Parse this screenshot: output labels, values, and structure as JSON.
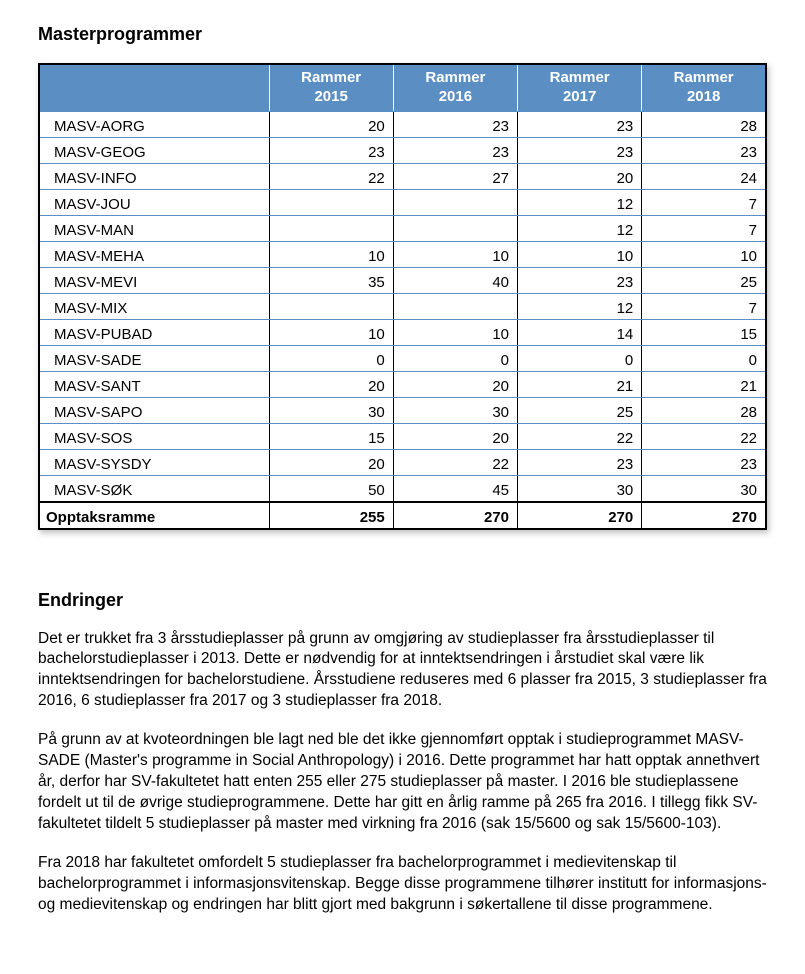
{
  "headings": {
    "title": "Masterprogrammer",
    "changes": "Endringer"
  },
  "table": {
    "type": "table",
    "header_bg": "#5b8fc4",
    "header_fg": "#ffffff",
    "row_divider_color": "#5b8fc4",
    "outer_border_color": "#000000",
    "columns": [
      "",
      "Rammer 2015",
      "Rammer 2016",
      "Rammer 2017",
      "Rammer 2018"
    ],
    "rows": [
      {
        "label": "MASV-AORG",
        "v": [
          "20",
          "23",
          "23",
          "28"
        ]
      },
      {
        "label": "MASV-GEOG",
        "v": [
          "23",
          "23",
          "23",
          "23"
        ]
      },
      {
        "label": "MASV-INFO",
        "v": [
          "22",
          "27",
          "20",
          "24"
        ]
      },
      {
        "label": "MASV-JOU",
        "v": [
          "",
          "",
          "12",
          "7"
        ]
      },
      {
        "label": "MASV-MAN",
        "v": [
          "",
          "",
          "12",
          "7"
        ]
      },
      {
        "label": "MASV-MEHA",
        "v": [
          "10",
          "10",
          "10",
          "10"
        ]
      },
      {
        "label": "MASV-MEVI",
        "v": [
          "35",
          "40",
          "23",
          "25"
        ]
      },
      {
        "label": "MASV-MIX",
        "v": [
          "",
          "",
          "12",
          "7"
        ]
      },
      {
        "label": "MASV-PUBAD",
        "v": [
          "10",
          "10",
          "14",
          "15"
        ]
      },
      {
        "label": "MASV-SADE",
        "v": [
          "0",
          "0",
          "0",
          "0"
        ]
      },
      {
        "label": "MASV-SANT",
        "v": [
          "20",
          "20",
          "21",
          "21"
        ]
      },
      {
        "label": "MASV-SAPO",
        "v": [
          "30",
          "30",
          "25",
          "28"
        ]
      },
      {
        "label": "MASV-SOS",
        "v": [
          "15",
          "20",
          "22",
          "22"
        ]
      },
      {
        "label": "MASV-SYSDY",
        "v": [
          "20",
          "22",
          "23",
          "23"
        ]
      },
      {
        "label": "MASV-SØK",
        "v": [
          "50",
          "45",
          "30",
          "30"
        ]
      }
    ],
    "total": {
      "label": "Opptaksramme",
      "v": [
        "255",
        "270",
        "270",
        "270"
      ]
    }
  },
  "paragraphs": {
    "p1": "Det er trukket fra 3 årsstudieplasser på grunn av omgjøring av studieplasser fra årsstudieplasser til bachelorstudieplasser i 2013. Dette er nødvendig for at inntektsendringen i årstudiet skal være lik inntektsendringen for bachelorstudiene. Årsstudiene reduseres med 6 plasser fra 2015, 3 studieplasser fra 2016, 6 studieplasser fra 2017 og 3 studieplasser fra 2018.",
    "p2": "På grunn av at kvoteordningen ble lagt ned ble det ikke gjennomført opptak i studieprogrammet MASV-SADE (Master's programme in Social Anthropology) i 2016. Dette programmet har hatt opptak annethvert år, derfor har SV-fakultetet hatt enten 255 eller 275 studieplasser på master. I 2016 ble studieplassene fordelt ut til de øvrige studieprogrammene. Dette har gitt en årlig ramme på 265 fra 2016. I tillegg fikk SV-fakultetet tildelt 5 studieplasser på master med virkning fra 2016 (sak 15/5600 og sak 15/5600-103).",
    "p3": "Fra 2018 har fakultetet omfordelt 5 studieplasser fra bachelorprogrammet i medievitenskap til bachelorprogrammet i informasjonsvitenskap. Begge disse programmene tilhører institutt for informasjons- og medievitenskap og endringen har blitt gjort med bakgrunn i søkertallene til disse programmene."
  }
}
